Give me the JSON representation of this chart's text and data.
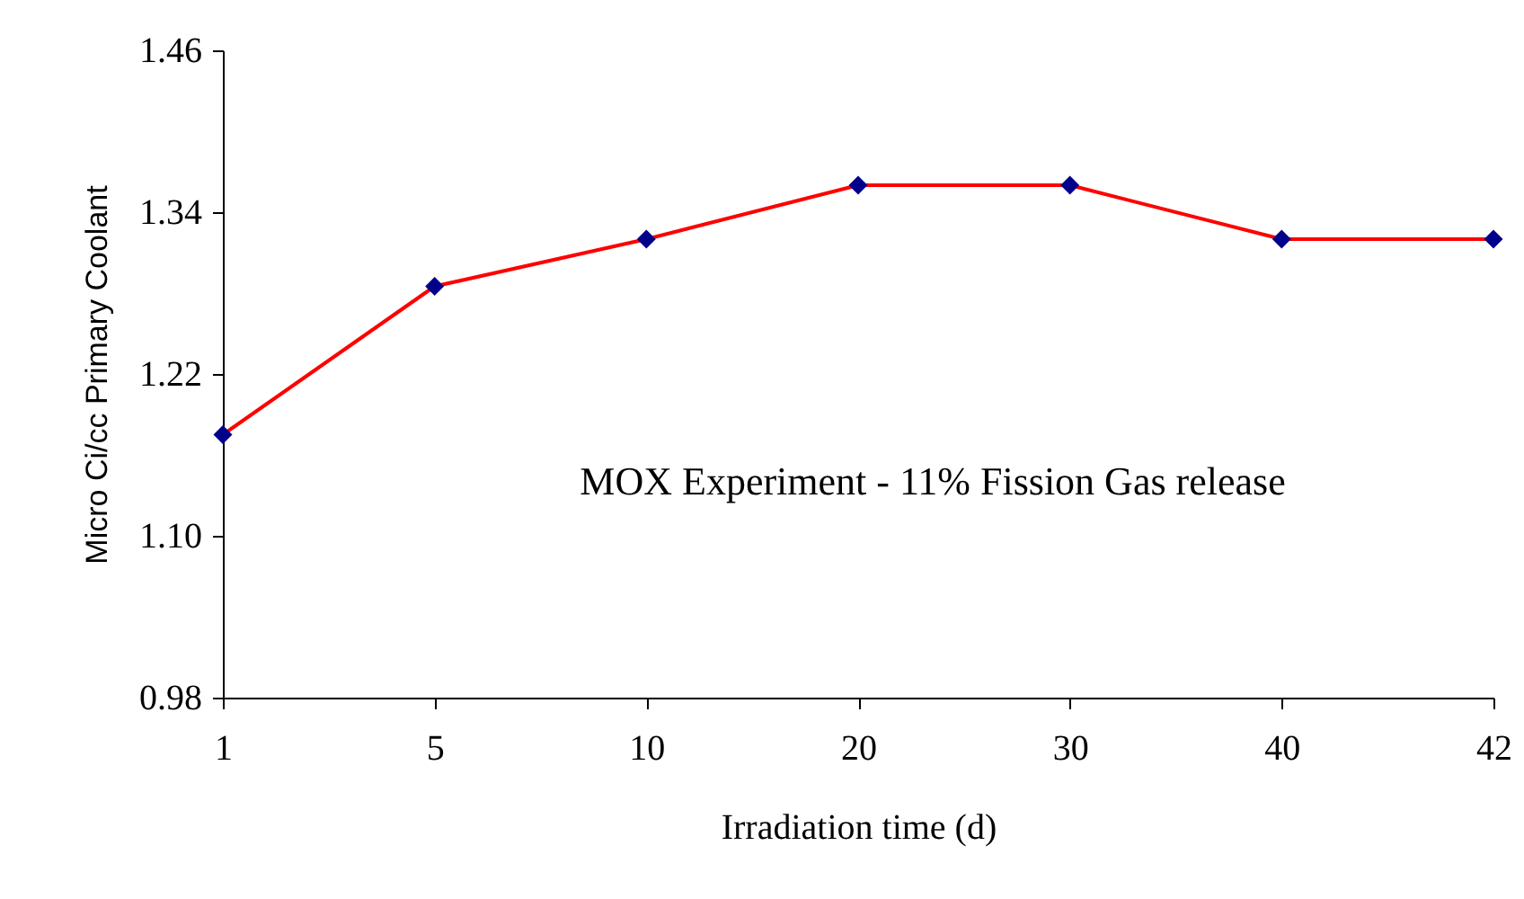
{
  "chart_data": {
    "type": "line",
    "xlabel": "Irradiation time (d)",
    "ylabel": "Micro Ci/cc Primary Coolant",
    "categories": [
      "1",
      "5",
      "10",
      "20",
      "30",
      "40",
      "42"
    ],
    "series": [
      {
        "color": "#ff0000",
        "colors": [
          "#00008b",
          "#00008b",
          "#00008b",
          "#00008b",
          "#00008b",
          "#00008b",
          "#00008b"
        ],
        "values": [
          1.175,
          1.285,
          1.32,
          1.36,
          1.36,
          1.32,
          1.32
        ]
      }
    ],
    "ylim": [
      0.98,
      1.46
    ],
    "yticks": [
      {
        "value": 0.98,
        "label": "0.98"
      },
      {
        "value": 1.1,
        "label": "1.10"
      },
      {
        "value": 1.22,
        "label": "1.22"
      },
      {
        "value": 1.34,
        "label": "1.34"
      },
      {
        "value": 1.46,
        "label": "1.46"
      }
    ],
    "marker": "diamond",
    "line_style": "solid",
    "grid": false,
    "annotations": [
      "MOX Experiment - 11% Fission Gas release"
    ]
  }
}
